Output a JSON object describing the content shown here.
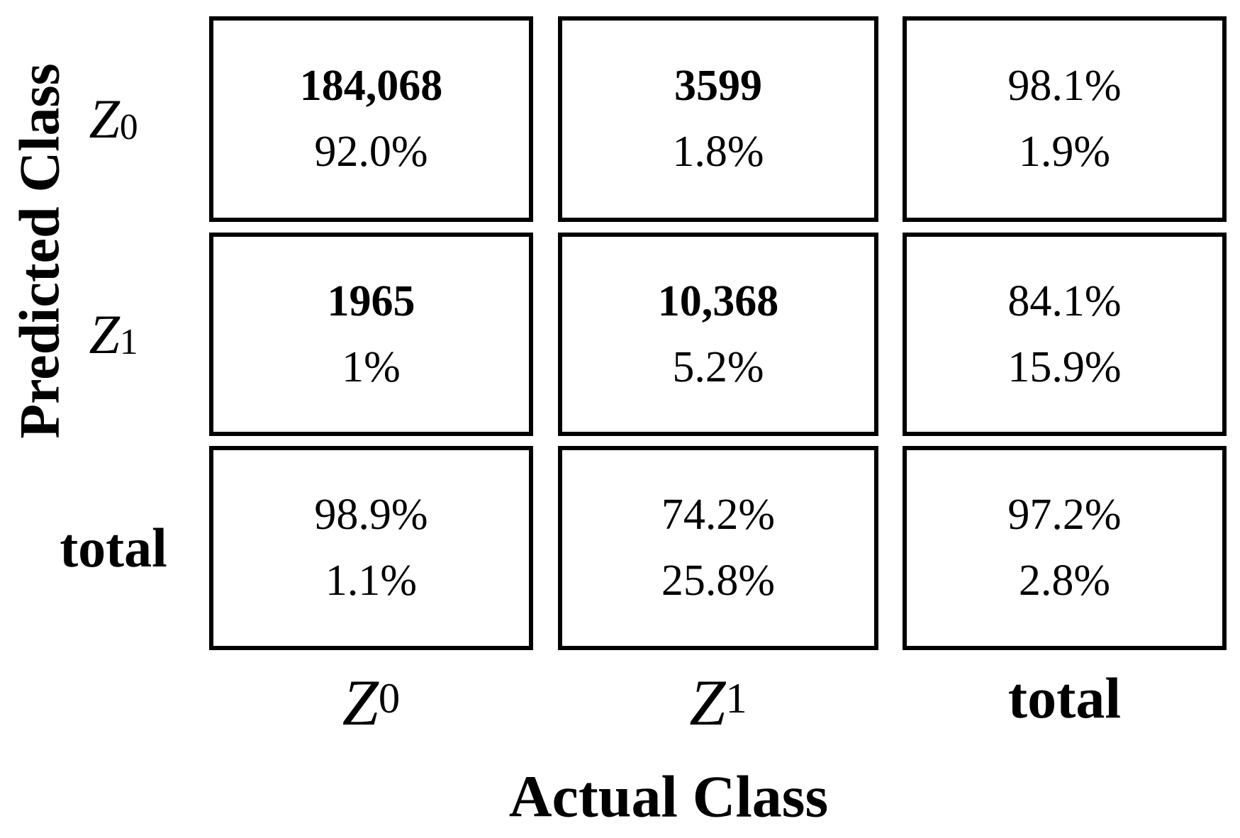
{
  "axes": {
    "y_title": "Predicted Class",
    "x_title": "Actual Class"
  },
  "row_labels": [
    {
      "base": "Z",
      "sub": "0"
    },
    {
      "base": "Z",
      "sub": "1"
    },
    {
      "base": "total",
      "sub": ""
    }
  ],
  "col_labels": [
    {
      "base": "Z",
      "sub": "0"
    },
    {
      "base": "Z",
      "sub": "1"
    },
    {
      "base": "total",
      "sub": ""
    }
  ],
  "chart_data": {
    "type": "table",
    "subtype": "confusion-matrix",
    "title": "",
    "x_axis_title": "Actual Class",
    "y_axis_title": "Predicted Class",
    "row_labels": [
      "Z0",
      "Z1",
      "total"
    ],
    "col_labels": [
      "Z0",
      "Z1",
      "total"
    ],
    "counts": [
      [
        184068,
        3599
      ],
      [
        1965,
        10368
      ]
    ],
    "cells": [
      [
        {
          "line1": "184,068",
          "line2": "92.0%"
        },
        {
          "line1": "3599",
          "line2": "1.8%"
        },
        {
          "line1": "98.1%",
          "line2": "1.9%"
        }
      ],
      [
        {
          "line1": "1965",
          "line2": "1%"
        },
        {
          "line1": "10,368",
          "line2": "5.2%"
        },
        {
          "line1": "84.1%",
          "line2": "15.9%"
        }
      ],
      [
        {
          "line1": "98.9%",
          "line2": "1.1%"
        },
        {
          "line1": "74.2%",
          "line2": "25.8%"
        },
        {
          "line1": "97.2%",
          "line2": "2.8%"
        }
      ]
    ],
    "colors": {
      "foreground": "#000000",
      "background": "#ffffff"
    },
    "layout": {
      "grid": "3x3",
      "border_px": 6,
      "legend": "none"
    }
  }
}
